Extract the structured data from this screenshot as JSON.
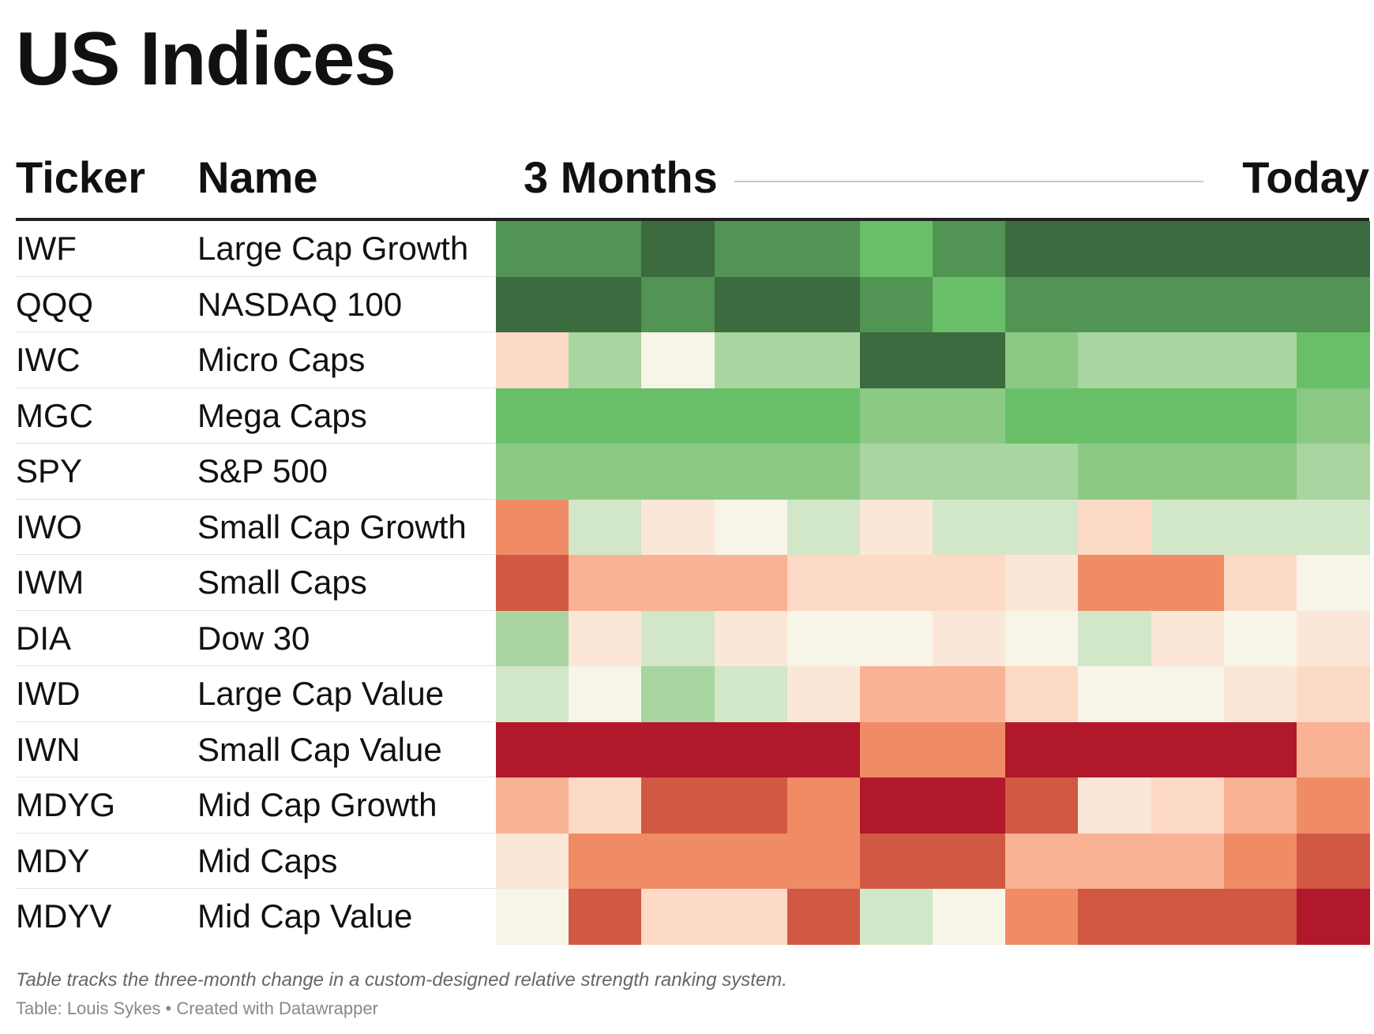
{
  "title": "US Indices",
  "header": {
    "ticker": "Ticker",
    "name": "Name",
    "period_start": "3 Months",
    "period_end": "Today"
  },
  "colors": {
    "dark_green": "#3c6b40",
    "green": "#519453",
    "bright_green": "#69bf68",
    "mid_green": "#8bc985",
    "light_green": "#a8d5a0",
    "pale_green": "#d2e7c8",
    "cream": "#f7f4e8",
    "pale_peach": "#fbe7d8",
    "peach": "#fddac6",
    "salmon": "#f9b293",
    "orange": "#f08c65",
    "red_orange": "#d15843",
    "dark_red": "#b2182b"
  },
  "chart_data": {
    "type": "heatmap",
    "columns": 12,
    "rows": [
      {
        "ticker": "IWF",
        "name": "Large Cap Growth",
        "cells": [
          "green",
          "green",
          "dark_green",
          "green",
          "green",
          "bright_green",
          "green",
          "dark_green",
          "dark_green",
          "dark_green",
          "dark_green",
          "dark_green"
        ]
      },
      {
        "ticker": "QQQ",
        "name": "NASDAQ 100",
        "cells": [
          "dark_green",
          "dark_green",
          "green",
          "dark_green",
          "dark_green",
          "green",
          "bright_green",
          "green",
          "green",
          "green",
          "green",
          "green"
        ]
      },
      {
        "ticker": "IWC",
        "name": "Micro Caps",
        "cells": [
          "peach",
          "light_green",
          "cream",
          "light_green",
          "light_green",
          "dark_green",
          "dark_green",
          "mid_green",
          "light_green",
          "light_green",
          "light_green",
          "bright_green"
        ]
      },
      {
        "ticker": "MGC",
        "name": "Mega Caps",
        "cells": [
          "bright_green",
          "bright_green",
          "bright_green",
          "bright_green",
          "bright_green",
          "mid_green",
          "mid_green",
          "bright_green",
          "bright_green",
          "bright_green",
          "bright_green",
          "mid_green"
        ]
      },
      {
        "ticker": "SPY",
        "name": "S&P 500",
        "cells": [
          "mid_green",
          "mid_green",
          "mid_green",
          "mid_green",
          "mid_green",
          "light_green",
          "light_green",
          "light_green",
          "mid_green",
          "mid_green",
          "mid_green",
          "light_green"
        ]
      },
      {
        "ticker": "IWO",
        "name": "Small Cap Growth",
        "cells": [
          "orange",
          "pale_green",
          "pale_peach",
          "cream",
          "pale_green",
          "pale_peach",
          "pale_green",
          "pale_green",
          "peach",
          "pale_green",
          "pale_green",
          "pale_green"
        ]
      },
      {
        "ticker": "IWM",
        "name": "Small Caps",
        "cells": [
          "red_orange",
          "salmon",
          "salmon",
          "salmon",
          "peach",
          "peach",
          "peach",
          "pale_peach",
          "orange",
          "orange",
          "peach",
          "cream"
        ]
      },
      {
        "ticker": "DIA",
        "name": "Dow 30",
        "cells": [
          "light_green",
          "pale_peach",
          "pale_green",
          "pale_peach",
          "cream",
          "cream",
          "pale_peach",
          "cream",
          "pale_green",
          "pale_peach",
          "cream",
          "pale_peach"
        ]
      },
      {
        "ticker": "IWD",
        "name": "Large Cap Value",
        "cells": [
          "pale_green",
          "cream",
          "light_green",
          "pale_green",
          "pale_peach",
          "salmon",
          "salmon",
          "peach",
          "cream",
          "cream",
          "pale_peach",
          "peach"
        ]
      },
      {
        "ticker": "IWN",
        "name": "Small Cap Value",
        "cells": [
          "dark_red",
          "dark_red",
          "dark_red",
          "dark_red",
          "dark_red",
          "orange",
          "orange",
          "dark_red",
          "dark_red",
          "dark_red",
          "dark_red",
          "salmon"
        ]
      },
      {
        "ticker": "MDYG",
        "name": "Mid Cap Growth",
        "cells": [
          "salmon",
          "peach",
          "red_orange",
          "red_orange",
          "orange",
          "dark_red",
          "dark_red",
          "red_orange",
          "pale_peach",
          "peach",
          "salmon",
          "orange"
        ]
      },
      {
        "ticker": "MDY",
        "name": "Mid Caps",
        "cells": [
          "pale_peach",
          "orange",
          "orange",
          "orange",
          "orange",
          "red_orange",
          "red_orange",
          "salmon",
          "salmon",
          "salmon",
          "orange",
          "red_orange"
        ]
      },
      {
        "ticker": "MDYV",
        "name": "Mid Cap Value",
        "cells": [
          "cream",
          "red_orange",
          "peach",
          "peach",
          "red_orange",
          "pale_green",
          "cream",
          "orange",
          "red_orange",
          "red_orange",
          "red_orange",
          "dark_red"
        ]
      }
    ]
  },
  "footer": {
    "note": "Table tracks the three-month change in a custom-designed relative strength ranking system.",
    "source": "Table: Louis Sykes • Created with Datawrapper"
  }
}
